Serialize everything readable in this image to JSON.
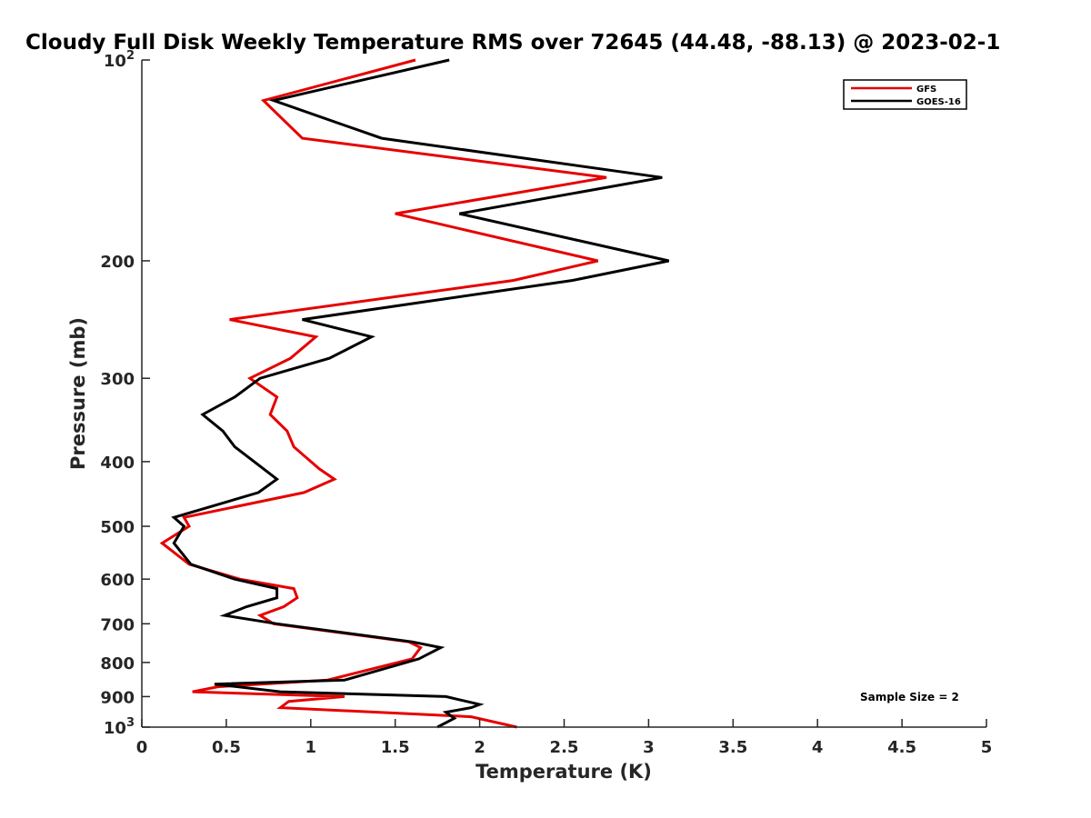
{
  "chart_data": {
    "type": "line",
    "title": "Cloudy Full Disk Weekly Temperature RMS over 72645 (44.48, -88.13) @ 2023-02-1",
    "xlabel": "Temperature (K)",
    "ylabel": "Pressure (mb)",
    "xlim": [
      0,
      5
    ],
    "ylim": [
      1000,
      100
    ],
    "y_scale": "log",
    "y_reversed": true,
    "grid": false,
    "legend_position": "top-right",
    "x_ticks": [
      "0",
      "0.5",
      "1",
      "1.5",
      "2",
      "2.5",
      "3",
      "3.5",
      "4",
      "4.5",
      "5"
    ],
    "y_ticks": [
      {
        "value": 100,
        "base": "10",
        "exp": "2"
      },
      {
        "value": 200,
        "label": "200"
      },
      {
        "value": 300,
        "label": "300"
      },
      {
        "value": 400,
        "label": "400"
      },
      {
        "value": 500,
        "label": "500"
      },
      {
        "value": 600,
        "label": "600"
      },
      {
        "value": 700,
        "label": "700"
      },
      {
        "value": 800,
        "label": "800"
      },
      {
        "value": 900,
        "label": "900"
      },
      {
        "value": 1000,
        "base": "10",
        "exp": "3"
      }
    ],
    "series": [
      {
        "name": "GFS",
        "color": "#e60000",
        "points": [
          [
            1.62,
            100
          ],
          [
            0.72,
            115
          ],
          [
            0.95,
            131
          ],
          [
            2.75,
            150
          ],
          [
            1.5,
            170
          ],
          [
            2.7,
            200
          ],
          [
            2.2,
            214
          ],
          [
            0.52,
            245
          ],
          [
            1.03,
            260
          ],
          [
            0.88,
            280
          ],
          [
            0.64,
            300
          ],
          [
            0.8,
            320
          ],
          [
            0.76,
            340
          ],
          [
            0.86,
            360
          ],
          [
            0.9,
            380
          ],
          [
            1.05,
            410
          ],
          [
            1.14,
            425
          ],
          [
            0.96,
            445
          ],
          [
            0.25,
            485
          ],
          [
            0.28,
            500
          ],
          [
            0.12,
            530
          ],
          [
            0.28,
            570
          ],
          [
            0.58,
            600
          ],
          [
            0.9,
            620
          ],
          [
            0.92,
            640
          ],
          [
            0.84,
            660
          ],
          [
            0.7,
            680
          ],
          [
            0.78,
            700
          ],
          [
            1.58,
            745
          ],
          [
            1.65,
            760
          ],
          [
            1.6,
            790
          ],
          [
            1.1,
            850
          ],
          [
            0.45,
            870
          ],
          [
            0.3,
            885
          ],
          [
            1.2,
            900
          ],
          [
            0.87,
            915
          ],
          [
            0.82,
            935
          ],
          [
            1.95,
            965
          ],
          [
            2.22,
            1000
          ]
        ]
      },
      {
        "name": "GOES-16",
        "color": "#000000",
        "points": [
          [
            1.82,
            100
          ],
          [
            0.78,
            115
          ],
          [
            1.42,
            131
          ],
          [
            3.08,
            150
          ],
          [
            1.88,
            170
          ],
          [
            3.12,
            200
          ],
          [
            2.55,
            214
          ],
          [
            0.95,
            245
          ],
          [
            1.36,
            260
          ],
          [
            1.11,
            280
          ],
          [
            0.7,
            300
          ],
          [
            0.55,
            320
          ],
          [
            0.36,
            340
          ],
          [
            0.48,
            360
          ],
          [
            0.55,
            380
          ],
          [
            0.72,
            410
          ],
          [
            0.8,
            425
          ],
          [
            0.69,
            445
          ],
          [
            0.19,
            485
          ],
          [
            0.25,
            500
          ],
          [
            0.19,
            530
          ],
          [
            0.29,
            570
          ],
          [
            0.55,
            600
          ],
          [
            0.8,
            620
          ],
          [
            0.8,
            640
          ],
          [
            0.62,
            660
          ],
          [
            0.49,
            680
          ],
          [
            0.8,
            700
          ],
          [
            1.6,
            745
          ],
          [
            1.77,
            760
          ],
          [
            1.64,
            790
          ],
          [
            1.2,
            850
          ],
          [
            0.43,
            862
          ],
          [
            0.82,
            885
          ],
          [
            1.8,
            900
          ],
          [
            2.0,
            925
          ],
          [
            1.95,
            935
          ],
          [
            1.8,
            950
          ],
          [
            1.85,
            970
          ],
          [
            1.75,
            1000
          ]
        ]
      }
    ],
    "annotations": [
      {
        "text": "Sample Size = 2"
      }
    ]
  }
}
